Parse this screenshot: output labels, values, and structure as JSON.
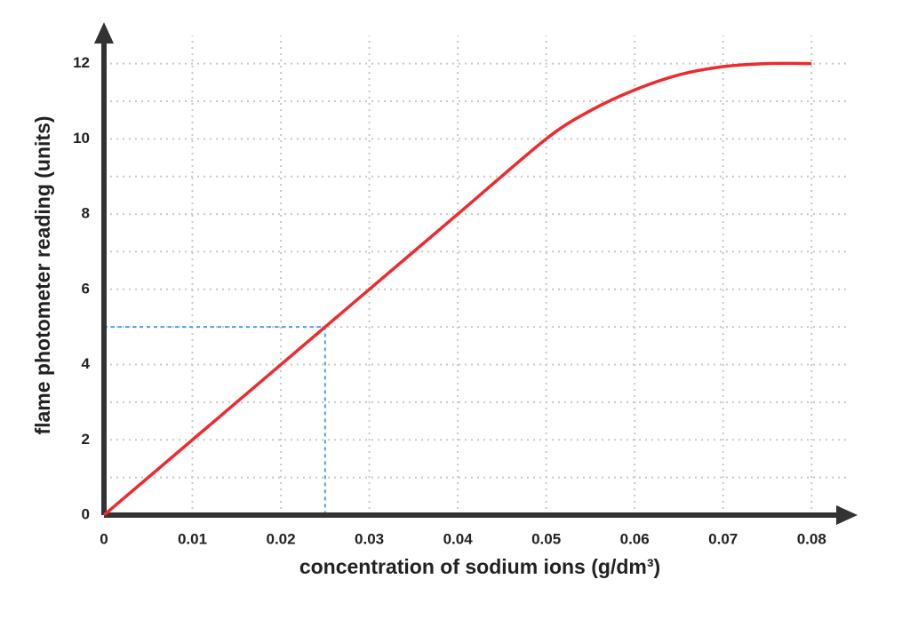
{
  "chart_data": {
    "type": "line",
    "x_label": "concentration of sodium ions (g/dm³)",
    "y_label": "flame photometer reading (units)",
    "x": [
      0,
      0.01,
      0.02,
      0.025,
      0.03,
      0.04,
      0.05,
      0.055,
      0.06,
      0.065,
      0.07,
      0.075,
      0.08
    ],
    "series": [
      {
        "color": "#ee2a2e",
        "values": [
          0,
          2,
          4,
          5,
          6,
          8,
          10,
          10.75,
          11.3,
          11.7,
          11.92,
          12,
          12
        ]
      }
    ],
    "xlim": [
      0,
      0.0852
    ],
    "ylim": [
      0,
      13.1
    ],
    "xticks": [
      0,
      0.01,
      0.02,
      0.03,
      0.04,
      0.05,
      0.06,
      0.07,
      0.08
    ],
    "yticks": [
      0,
      2,
      4,
      6,
      8,
      10,
      12
    ],
    "yminorticks": [
      1,
      3,
      5,
      7,
      9,
      11
    ],
    "grid": true,
    "reference_point": {
      "x": 0.025,
      "y": 5,
      "color": "#4aa3e6"
    }
  }
}
